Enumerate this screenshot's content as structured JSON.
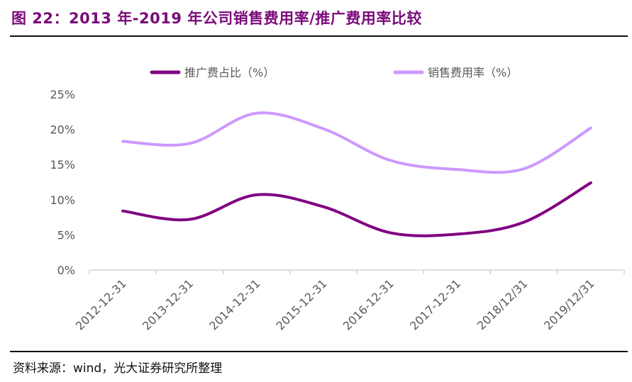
{
  "figure": {
    "title": "图 22：2013 年-2019 年公司销售费用率/推广费用率比较",
    "source": "资料来源：wind，光大证券研究所整理"
  },
  "colors": {
    "promo": "#800080",
    "sales": "#cc99ff",
    "title": "#7a0a7a"
  },
  "chart_data": {
    "type": "line",
    "categories": [
      "2012-12-31",
      "2013-12-31",
      "2014-12-31",
      "2015-12-31",
      "2016-12-31",
      "2017-12-31",
      "2018/12/31",
      "2019/12/31"
    ],
    "series": [
      {
        "name": "推广费占比（%）",
        "values": [
          8.4,
          7.2,
          10.7,
          9.0,
          5.3,
          5.1,
          6.8,
          12.4
        ]
      },
      {
        "name": "销售费用率（%）",
        "values": [
          18.3,
          18.0,
          22.3,
          20.1,
          15.6,
          14.3,
          14.4,
          20.2
        ]
      }
    ],
    "yticks": [
      "0%",
      "5%",
      "10%",
      "15%",
      "20%",
      "25%"
    ],
    "ylim": [
      0,
      25
    ],
    "legend": "top",
    "grid": false
  }
}
